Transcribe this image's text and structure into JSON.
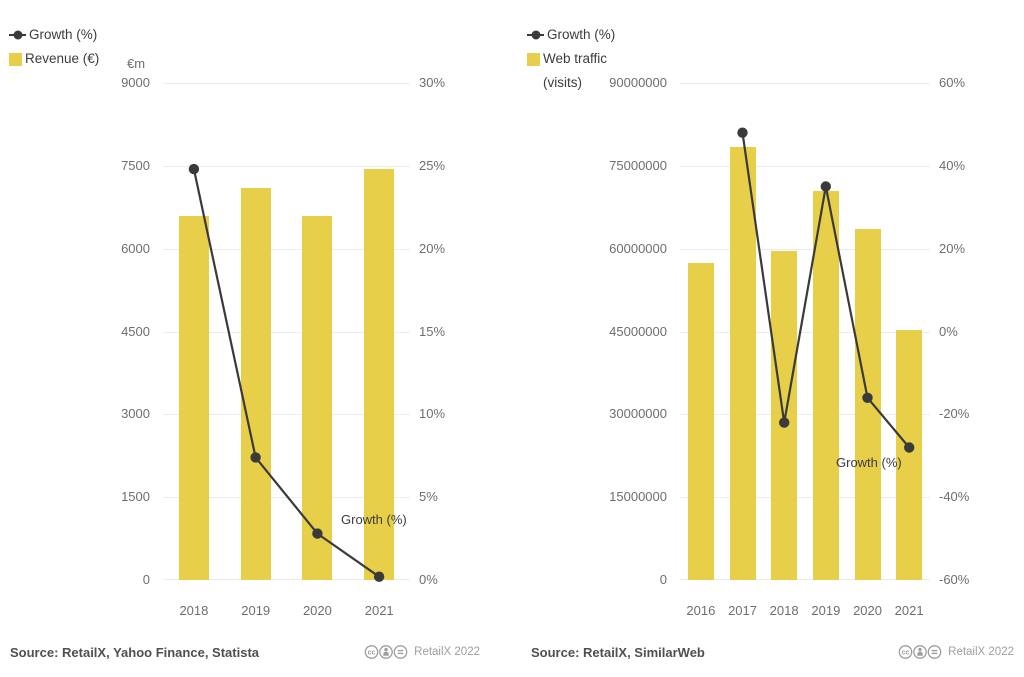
{
  "colors": {
    "background": "#ffffff",
    "bar": "#e8cf4a",
    "line": "#3a3a3a",
    "grid": "#ececec",
    "tick_text": "#6e6e6e",
    "label_text": "#3c3c3c",
    "source_text": "#4f4f4f",
    "muted": "#9e9e9e"
  },
  "charts": [
    {
      "id": "revenue-growth",
      "legend": [
        {
          "marker": "line-dot",
          "label": "Growth (%)"
        },
        {
          "marker": "square",
          "label": "Revenue (€)"
        }
      ],
      "chart_data": {
        "type": "bar+line",
        "categories": [
          "2018",
          "2019",
          "2020",
          "2021"
        ],
        "series": [
          {
            "name": "Revenue (€)",
            "type": "bar",
            "axis": "left",
            "values": [
              6600,
              7100,
              6600,
              7450
            ]
          },
          {
            "name": "Growth (%)",
            "type": "line",
            "axis": "right",
            "values": [
              24.8,
              7.4,
              2.8,
              0.2
            ]
          }
        ],
        "left_axis": {
          "title": "€m",
          "min": 0,
          "max": 9000,
          "ticks": [
            "9000",
            "7500",
            "6000",
            "4500",
            "3000",
            "1500",
            "0"
          ]
        },
        "right_axis": {
          "min": 0,
          "max": 30,
          "ticks": [
            "30%",
            "25%",
            "20%",
            "15%",
            "10%",
            "5%",
            "0%"
          ]
        },
        "annotation": "Growth (%)",
        "grid": true,
        "legend_position": "top-left"
      },
      "source": "Source: RetailX, Yahoo Finance, Statista",
      "credit": "RetailX 2022",
      "license_icons": [
        "cc-icon",
        "cc-by-icon",
        "cc-nd-icon"
      ]
    },
    {
      "id": "webtraffic-growth",
      "legend": [
        {
          "marker": "line-dot",
          "label": "Growth (%)"
        },
        {
          "marker": "square",
          "label": "Web traffic\n(visits)"
        }
      ],
      "chart_data": {
        "type": "bar+line",
        "categories": [
          "2016",
          "2017",
          "2018",
          "2019",
          "2020",
          "2021"
        ],
        "series": [
          {
            "name": "Web traffic (visits)",
            "type": "bar",
            "axis": "left",
            "values": [
              57500000,
              78500000,
              59500000,
              70500000,
              63500000,
              45200000
            ]
          },
          {
            "name": "Growth (%)",
            "type": "line",
            "axis": "right",
            "values": [
              null,
              48,
              -22,
              35,
              -16,
              -28
            ]
          }
        ],
        "left_axis": {
          "title": "",
          "min": 0,
          "max": 90000000,
          "ticks": [
            "90000000",
            "75000000",
            "60000000",
            "45000000",
            "30000000",
            "15000000",
            "0"
          ]
        },
        "right_axis": {
          "min": -60,
          "max": 60,
          "ticks": [
            "60%",
            "40%",
            "20%",
            "0%",
            "-20%",
            "-40%",
            "-60%"
          ]
        },
        "annotation": "Growth (%)",
        "grid": true,
        "legend_position": "top-left"
      },
      "source": "Source: RetailX, SimilarWeb",
      "credit": "RetailX 2022",
      "license_icons": [
        "cc-icon",
        "cc-by-icon",
        "cc-nd-icon"
      ]
    }
  ]
}
